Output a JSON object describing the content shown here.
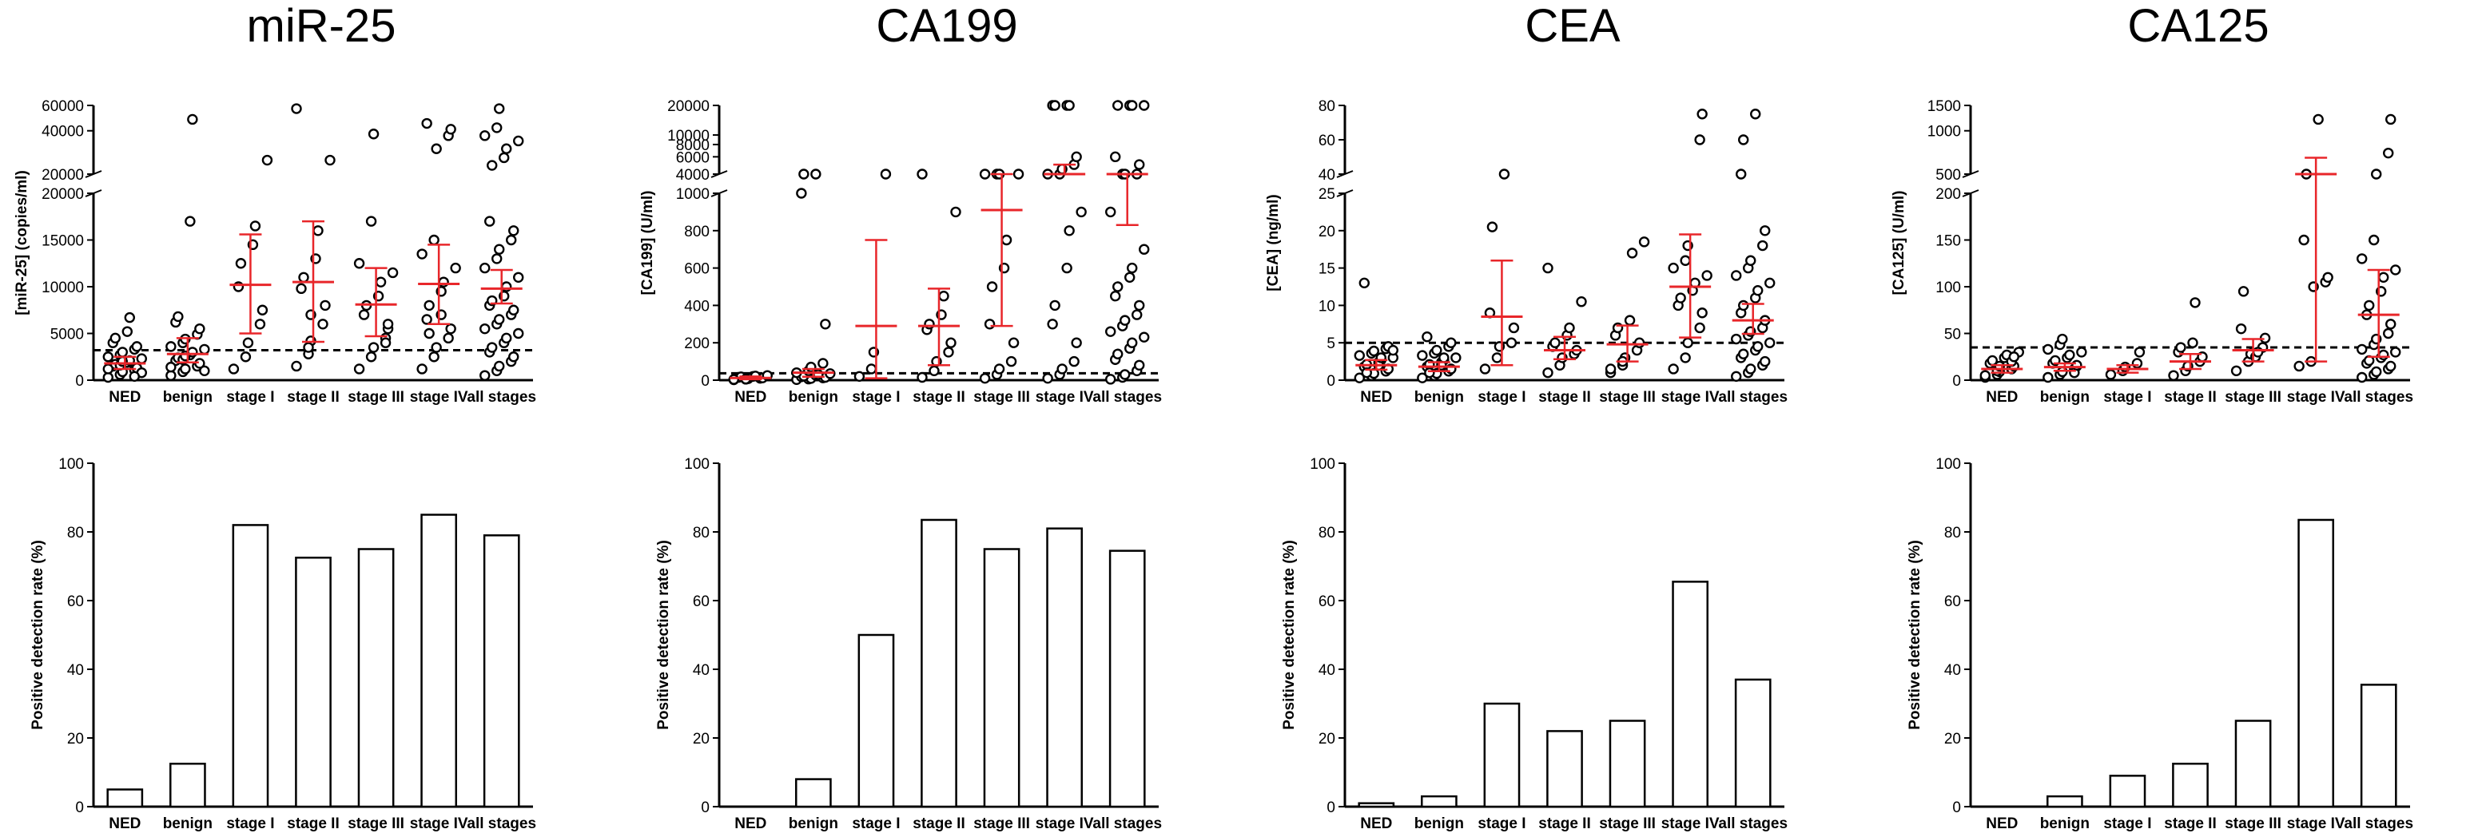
{
  "chart_data": [
    {
      "type": "scatter",
      "title": "miR-25",
      "ylabel": "[miR-25] (copies/ml)",
      "categories": [
        "NED",
        "benign",
        "stage I",
        "stage II",
        "stage III",
        "stage IV",
        "all stages"
      ],
      "axis_break": true,
      "yticks_lower": [
        "0",
        "5000",
        "10000",
        "15000",
        "20000"
      ],
      "yticks_upper": [
        "20000",
        "40000",
        "60000"
      ],
      "cutoff": 3200,
      "points": [
        [
          300,
          600,
          900,
          1100,
          1300,
          1500,
          1700,
          1900,
          2100,
          2300,
          2500,
          2700,
          3000,
          3300,
          3600,
          4000,
          4500,
          5200,
          6700,
          800,
          1200,
          1600,
          2000,
          400
        ],
        [
          500,
          900,
          1200,
          1500,
          1800,
          2100,
          2400,
          2700,
          3000,
          3300,
          3600,
          4000,
          4400,
          4900,
          5500,
          6200,
          6800,
          17000,
          48000,
          1000,
          1400,
          2200,
          2600
        ],
        [
          1200,
          2500,
          4000,
          6000,
          7500,
          10000,
          12500,
          14500,
          16500,
          25000
        ],
        [
          1500,
          2800,
          4200,
          6000,
          8000,
          9800,
          11000,
          13000,
          16000,
          25000,
          57000,
          3500,
          7000
        ],
        [
          1200,
          2500,
          3500,
          4500,
          5500,
          7000,
          8000,
          9000,
          10500,
          11500,
          12500,
          17000,
          38000,
          4000,
          6000
        ],
        [
          1200,
          2500,
          3500,
          4500,
          5500,
          6500,
          8000,
          9500,
          10500,
          12000,
          13500,
          15000,
          30000,
          37000,
          41000,
          45000,
          5000,
          7000
        ],
        [
          500,
          1000,
          1500,
          2000,
          2500,
          3000,
          3500,
          4000,
          4500,
          5000,
          5500,
          6000,
          6500,
          7000,
          7500,
          8000,
          8500,
          9000,
          10000,
          11000,
          12000,
          13000,
          14000,
          15000,
          16000,
          17000,
          23000,
          26000,
          30000,
          34000,
          37000,
          42000,
          57000
        ]
      ],
      "mean": [
        1800,
        2800,
        10200,
        10500,
        8100,
        10300,
        9800
      ],
      "err_low": [
        1200,
        1900,
        5000,
        4100,
        4700,
        6000,
        8200
      ],
      "err_high": [
        2500,
        4500,
        15600,
        17000,
        12000,
        14500,
        11800
      ],
      "bar_ylabel": "Positive detection rate (%)",
      "bar_yticks": [
        "0",
        "20",
        "40",
        "60",
        "80",
        "100"
      ],
      "bar_values": [
        5,
        12.5,
        82,
        72.5,
        75,
        85,
        79
      ]
    },
    {
      "type": "scatter",
      "title": "CA199",
      "ylabel": "[CA199] (U/ml)",
      "categories": [
        "NED",
        "benign",
        "stage I",
        "stage II",
        "stage III",
        "stage IV",
        "all stages"
      ],
      "axis_break": true,
      "yticks_lower": [
        "0",
        "200",
        "400",
        "600",
        "800",
        "1000"
      ],
      "yticks_upper": [
        "4000",
        "6000",
        "8000",
        "10000",
        "20000"
      ],
      "cutoff": 37,
      "points": [
        [
          2,
          5,
          8,
          10,
          12,
          15,
          18,
          20,
          22,
          25,
          4,
          6
        ],
        [
          3,
          6,
          9,
          12,
          15,
          18,
          22,
          26,
          30,
          35,
          40,
          50,
          70,
          90,
          300,
          1000,
          2000,
          2200
        ],
        [
          20,
          60,
          150,
          1500
        ],
        [
          15,
          50,
          100,
          150,
          200,
          270,
          300,
          350,
          450,
          900,
          2000
        ],
        [
          10,
          30,
          60,
          100,
          200,
          300,
          500,
          600,
          750,
          2000,
          3500,
          3800,
          4000
        ],
        [
          10,
          30,
          60,
          100,
          200,
          300,
          400,
          600,
          800,
          900,
          1500,
          2000,
          4500,
          5000,
          6000,
          20000,
          20000,
          20000,
          20000
        ],
        [
          5,
          15,
          30,
          50,
          80,
          110,
          140,
          170,
          200,
          230,
          260,
          290,
          320,
          350,
          400,
          450,
          500,
          550,
          600,
          700,
          900,
          2000,
          3000,
          4000,
          5000,
          6000,
          20000,
          20000,
          20000,
          20000
        ]
      ],
      "mean": [
        12,
        40,
        290,
        290,
        910,
        4000,
        2600
      ],
      "err_low": [
        5,
        18,
        10,
        80,
        290,
        2800,
        830
      ],
      "err_high": [
        20,
        60,
        750,
        490,
        1500,
        5000,
        4000
      ],
      "bar_ylabel": "Positive detection rate (%)",
      "bar_yticks": [
        "0",
        "20",
        "40",
        "60",
        "80",
        "100"
      ],
      "bar_values": [
        0,
        8,
        50,
        83.5,
        75,
        81,
        74.5
      ]
    },
    {
      "type": "scatter",
      "title": "CEA",
      "ylabel": "[CEA] (ng/ml)",
      "categories": [
        "NED",
        "benign",
        "stage I",
        "stage II",
        "stage III",
        "stage IV",
        "all stages"
      ],
      "axis_break": true,
      "yticks_lower": [
        "0",
        "5",
        "10",
        "15",
        "20",
        "25"
      ],
      "yticks_upper": [
        "40",
        "60",
        "80"
      ],
      "cutoff": 5,
      "points": [
        [
          0.3,
          0.6,
          0.9,
          1.2,
          1.5,
          1.8,
          2.1,
          2.4,
          2.7,
          3.0,
          3.3,
          3.6,
          3.9,
          4.2,
          4.5,
          13,
          1,
          2,
          3,
          4
        ],
        [
          0.3,
          0.6,
          0.9,
          1.2,
          1.5,
          1.8,
          2.1,
          2.4,
          2.7,
          3.0,
          3.3,
          3.6,
          4.0,
          4.5,
          5.0,
          5.8,
          1,
          2,
          3
        ],
        [
          1.5,
          3,
          4.5,
          5,
          7,
          9,
          20.5,
          34
        ],
        [
          1,
          2,
          3,
          3.5,
          4,
          4.5,
          5,
          6,
          7,
          10.5,
          15
        ],
        [
          1,
          2,
          3,
          4,
          5,
          6,
          7,
          8,
          17,
          18.5,
          1.5,
          2.5
        ],
        [
          1.5,
          3,
          5,
          7,
          9,
          10,
          11,
          12,
          13,
          14,
          15,
          16,
          18,
          60,
          75
        ],
        [
          0.5,
          1,
          1.5,
          2,
          2.5,
          3,
          3.5,
          4,
          4.5,
          5,
          5.5,
          6,
          6.5,
          7,
          8,
          9,
          10,
          11,
          12,
          13,
          14,
          15,
          16,
          18,
          20,
          34,
          60,
          75
        ]
      ],
      "mean": [
        2.0,
        1.8,
        8.5,
        4.0,
        4.8,
        12.5,
        8.0
      ],
      "err_low": [
        1.4,
        1.2,
        2.0,
        2.8,
        2.5,
        5.7,
        6.2
      ],
      "err_high": [
        2.7,
        2.4,
        16,
        5.8,
        7.3,
        19.5,
        10.2
      ],
      "bar_ylabel": "Positive detection rate (%)",
      "bar_yticks": [
        "0",
        "20",
        "40",
        "60",
        "80",
        "100"
      ],
      "bar_values": [
        1,
        3,
        30,
        22,
        25,
        65.5,
        37
      ]
    },
    {
      "type": "scatter",
      "title": "CA125",
      "ylabel": "[CA125] (U/ml)",
      "categories": [
        "NED",
        "benign",
        "stage I",
        "stage II",
        "stage III",
        "stage IV",
        "all stages"
      ],
      "axis_break": true,
      "yticks_lower": [
        "0",
        "50",
        "100",
        "150",
        "200"
      ],
      "yticks_upper": [
        "500",
        "1000",
        "1500"
      ],
      "cutoff": 35,
      "points": [
        [
          3,
          6,
          9,
          12,
          15,
          18,
          21,
          24,
          27,
          30,
          5,
          10,
          15,
          20,
          25
        ],
        [
          3,
          6,
          9,
          12,
          15,
          18,
          21,
          24,
          27,
          30,
          33,
          38,
          44,
          8,
          16
        ],
        [
          6,
          10,
          14,
          18,
          30
        ],
        [
          5,
          10,
          15,
          20,
          25,
          30,
          35,
          40,
          83
        ],
        [
          10,
          20,
          28,
          35,
          45,
          55,
          95,
          25,
          30
        ],
        [
          15,
          20,
          100,
          105,
          110,
          150,
          500,
          1200
        ],
        [
          3,
          6,
          9,
          12,
          15,
          18,
          21,
          24,
          27,
          30,
          33,
          38,
          44,
          50,
          60,
          70,
          80,
          95,
          110,
          118,
          130,
          150,
          500,
          700,
          1200
        ]
      ],
      "mean": [
        12,
        14,
        12,
        20,
        32,
        220,
        70
      ],
      "err_low": [
        8,
        10,
        8,
        12,
        20,
        20,
        25
      ],
      "err_high": [
        16,
        18,
        16,
        28,
        44,
        650,
        118
      ],
      "bar_ylabel": "Positive detection rate (%)",
      "bar_yticks": [
        "0",
        "20",
        "40",
        "60",
        "80",
        "100"
      ],
      "bar_values": [
        0,
        3,
        9,
        12.5,
        25,
        83.5,
        35.5
      ]
    }
  ]
}
